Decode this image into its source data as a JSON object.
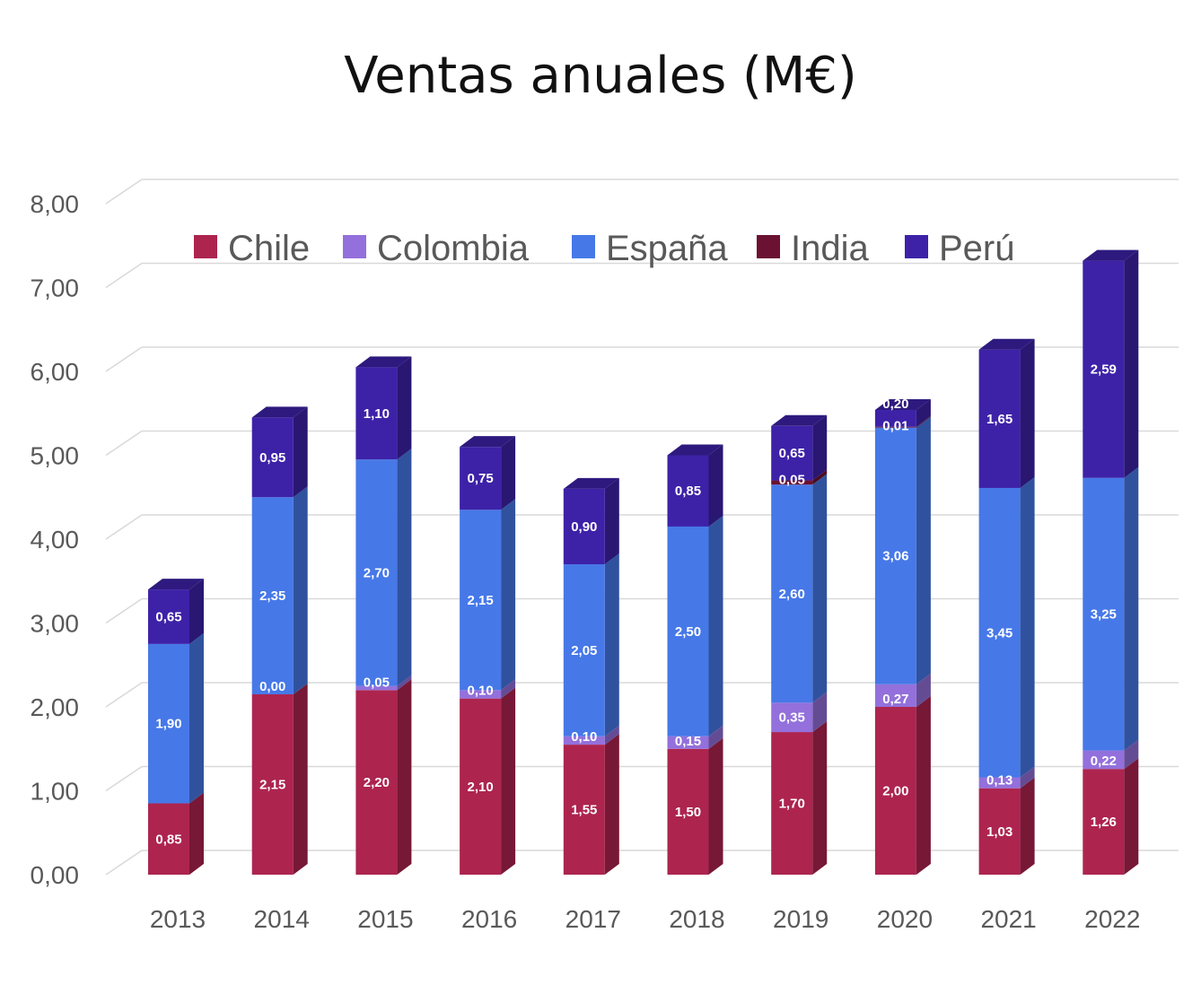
{
  "chart_data": {
    "type": "bar",
    "stacked": true,
    "style": "3d-column",
    "title": "Ventas anuales (M€)",
    "xlabel": "",
    "ylabel": "",
    "ylim": [
      0,
      8
    ],
    "y_ticks": [
      "0,00",
      "1,00",
      "2,00",
      "3,00",
      "4,00",
      "5,00",
      "6,00",
      "7,00",
      "8,00"
    ],
    "grid": true,
    "legend_position": "top",
    "categories": [
      "2013",
      "2014",
      "2015",
      "2016",
      "2017",
      "2018",
      "2019",
      "2020",
      "2021",
      "2022"
    ],
    "series": [
      {
        "name": "Chile",
        "color": "#AD244F",
        "values": [
          0.85,
          2.15,
          2.2,
          2.1,
          1.55,
          1.5,
          1.7,
          2.0,
          1.03,
          1.26
        ],
        "labels": [
          "0,85",
          "2,15",
          "2,20",
          "2,10",
          "1,55",
          "1,50",
          "1,70",
          "2,00",
          "1,03",
          "1,26"
        ]
      },
      {
        "name": "Colombia",
        "color": "#9370DB",
        "values": [
          null,
          0.0,
          0.05,
          0.1,
          0.1,
          0.15,
          0.35,
          0.27,
          0.13,
          0.22
        ],
        "labels": [
          "",
          "0,00",
          "0,05",
          "0,10",
          "0,10",
          "0,15",
          "0,35",
          "0,27",
          "0,13",
          "0,22"
        ]
      },
      {
        "name": "España",
        "color": "#4678E8",
        "values": [
          1.9,
          2.35,
          2.7,
          2.15,
          2.05,
          2.5,
          2.6,
          3.06,
          3.45,
          3.25
        ],
        "labels": [
          "1,90",
          "2,35",
          "2,70",
          "2,15",
          "2,05",
          "2,50",
          "2,60",
          "3,06",
          "3,45",
          "3,25"
        ]
      },
      {
        "name": "India",
        "color": "#6B1232",
        "values": [
          null,
          null,
          null,
          null,
          null,
          null,
          0.05,
          0.01,
          null,
          null
        ],
        "labels": [
          "",
          "",
          "",
          "",
          "",
          "",
          "0,05",
          "0,01",
          "",
          ""
        ]
      },
      {
        "name": "Perú",
        "color": "#3D22A8",
        "values": [
          0.65,
          0.95,
          1.1,
          0.75,
          0.9,
          0.85,
          0.65,
          0.2,
          1.65,
          2.59
        ],
        "labels": [
          "0,65",
          "0,95",
          "1,10",
          "0,75",
          "0,90",
          "0,85",
          "0,65",
          "0,20",
          "1,65",
          "2,59"
        ]
      }
    ]
  }
}
